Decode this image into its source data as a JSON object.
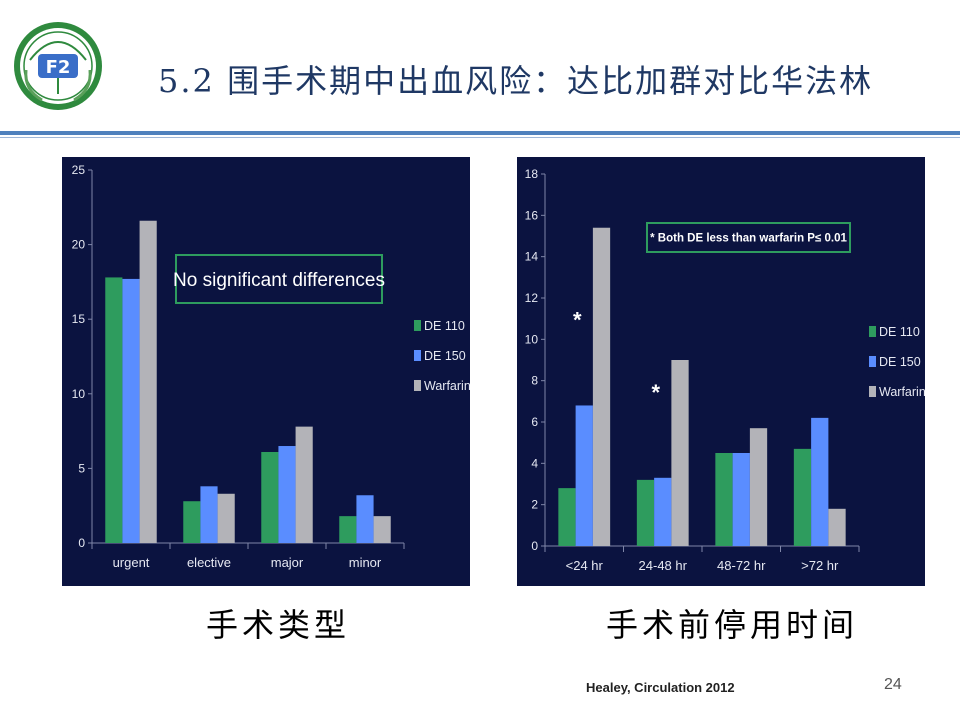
{
  "slide": {
    "title": "5.2 围手术期中出血风险：达比加群对比华法林",
    "caption_left": "手术类型",
    "caption_right": "手术前停用时间",
    "citation": "Healey, Circulation 2012",
    "page_number": "24"
  },
  "colors": {
    "de110": "#2e9c5e",
    "de150": "#5a8dff",
    "warfarin": "#b3b3b8",
    "panel": "#0b1340",
    "title": "#1f3864",
    "rule": "#4f81bd",
    "annotation_border": "#2e9c5e"
  },
  "chart_data": [
    {
      "type": "bar",
      "categories": [
        "urgent",
        "elective",
        "major",
        "minor"
      ],
      "series": [
        {
          "name": "DE 110",
          "values": [
            17.8,
            2.8,
            6.1,
            1.8
          ]
        },
        {
          "name": "DE 150",
          "values": [
            17.7,
            3.8,
            6.5,
            3.2
          ]
        },
        {
          "name": "Warfarin",
          "values": [
            21.6,
            3.3,
            7.8,
            1.8
          ]
        }
      ],
      "ylim": [
        0,
        25
      ],
      "yticks": [
        "0",
        "5",
        "10",
        "15",
        "20",
        "25"
      ],
      "annotation": "No significant differences",
      "star_labels": [],
      "legend_position": "right"
    },
    {
      "type": "bar",
      "categories": [
        "<24 hr",
        "24-48 hr",
        "48-72 hr",
        ">72 hr"
      ],
      "series": [
        {
          "name": "DE 110",
          "values": [
            2.8,
            3.2,
            4.5,
            4.7
          ]
        },
        {
          "name": "DE 150",
          "values": [
            6.8,
            3.3,
            4.5,
            6.2
          ]
        },
        {
          "name": "Warfarin",
          "values": [
            15.4,
            9.0,
            5.7,
            1.8
          ]
        }
      ],
      "ylim": [
        0,
        18
      ],
      "yticks": [
        "0",
        "2",
        "4",
        "6",
        "8",
        "10",
        "12",
        "14",
        "16",
        "18"
      ],
      "annotation": "* Both DE less than warfarin P≤ 0.01",
      "star_labels": [
        {
          "category": "<24 hr",
          "text": "*"
        },
        {
          "category": "24-48 hr",
          "text": "*"
        }
      ],
      "legend_position": "right"
    }
  ]
}
